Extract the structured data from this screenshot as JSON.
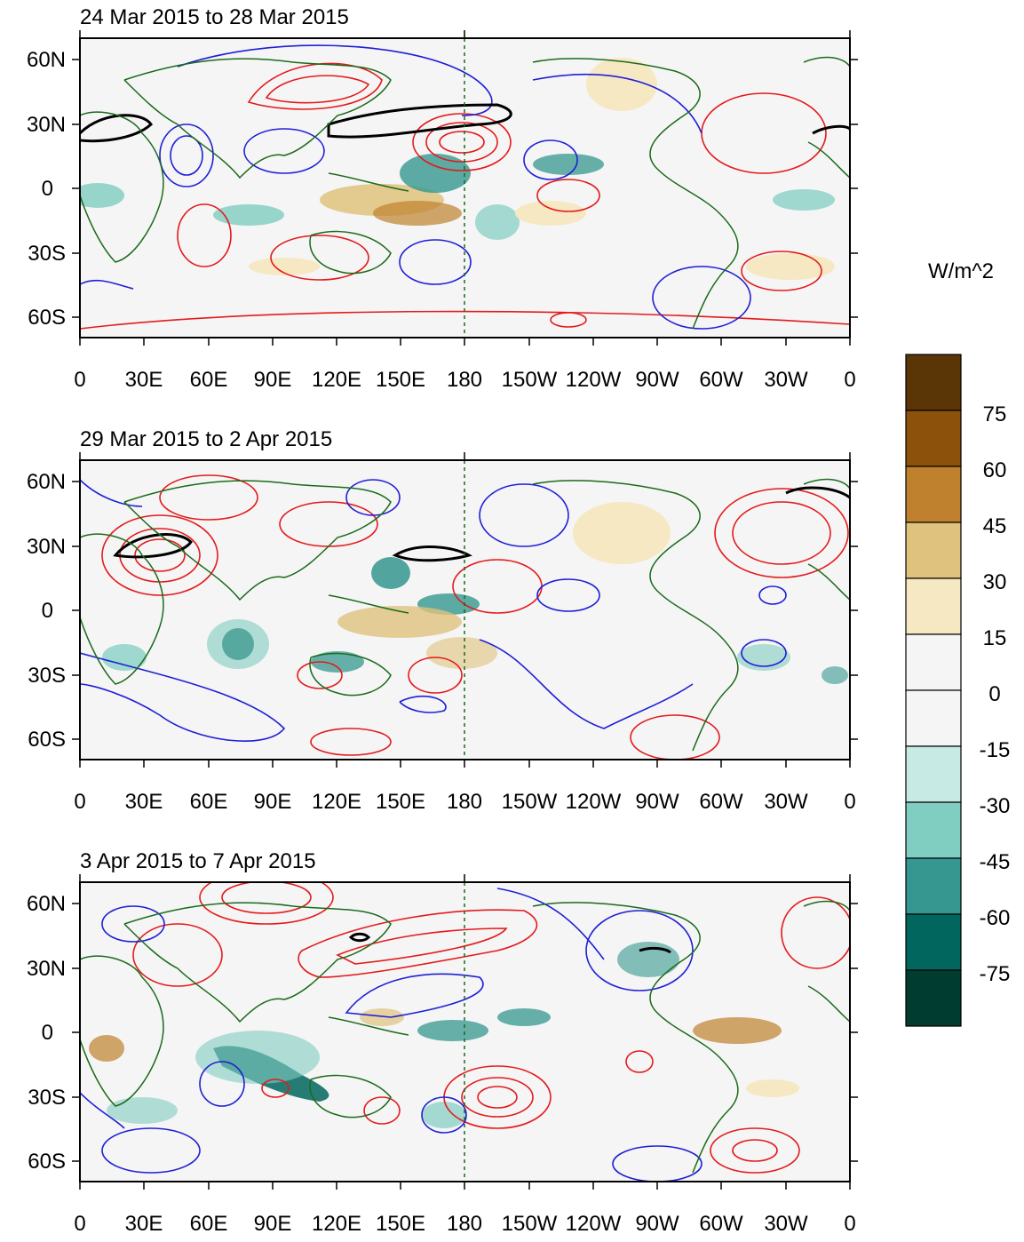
{
  "panels": [
    {
      "title": "24 Mar 2015 to 28 Mar 2015"
    },
    {
      "title": "29 Mar 2015 to 2 Apr 2015"
    },
    {
      "title": "3 Apr 2015 to 7 Apr 2015"
    }
  ],
  "x_tick_labels": [
    "0",
    "30E",
    "60E",
    "90E",
    "120E",
    "150E",
    "180",
    "150W",
    "120W",
    "90W",
    "60W",
    "30W",
    "0"
  ],
  "y_tick_labels": [
    "60N",
    "30N",
    "0",
    "30S",
    "60S"
  ],
  "colorbar": {
    "title": "W/m^2",
    "labels": [
      "75",
      "60",
      "45",
      "30",
      "15",
      "0",
      "-15",
      "-30",
      "-45",
      "-60",
      "-75"
    ],
    "colors": [
      "#5a3506",
      "#8c510a",
      "#bf812d",
      "#dfc27d",
      "#f6e8c3",
      "#f5f5f5",
      "#f5f5f5",
      "#c7eae5",
      "#80cdc1",
      "#35978f",
      "#01665e",
      "#003c30"
    ]
  },
  "colors": {
    "coastline": "#1a6b1a",
    "positive_contour": "#e41a1c",
    "negative_contour": "#1f1fd6",
    "thick_contour": "#000000",
    "dateline": "#1a6b1a",
    "background": "#f5f5f5"
  }
}
